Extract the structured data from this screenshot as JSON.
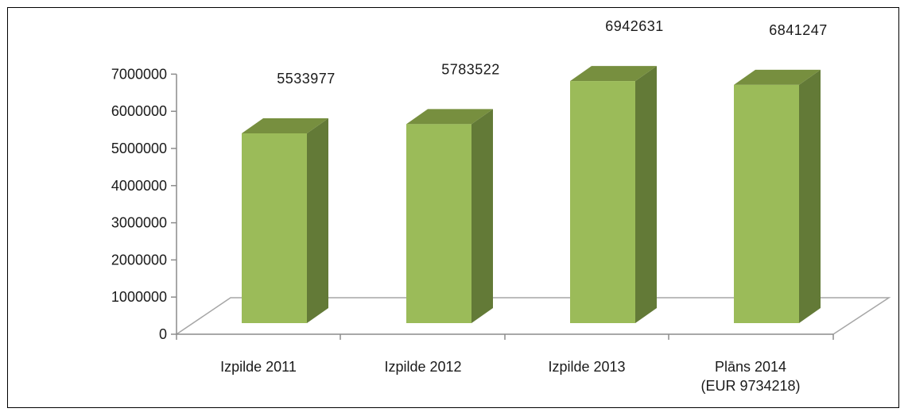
{
  "colors": {
    "bar_front": "#9bbb59",
    "bar_side": "#637a37",
    "bar_top": "#778f3f",
    "floor_line": "#a6a6a6",
    "axis_line": "#8c8c8c"
  },
  "chart_data": {
    "type": "bar",
    "style": "3d-column",
    "title": "",
    "xlabel": "",
    "ylabel": "",
    "ylim": [
      0,
      7000000
    ],
    "yticks": [
      "0",
      "1000000",
      "2000000",
      "3000000",
      "4000000",
      "5000000",
      "6000000",
      "7000000"
    ],
    "categories": [
      [
        "Izpilde 2011"
      ],
      [
        "Izpilde 2012"
      ],
      [
        "Izpilde 2013"
      ],
      [
        "Plāns 2014",
        "(EUR 9734218)"
      ]
    ],
    "values": [
      5533977,
      5783522,
      6942631,
      6841247
    ],
    "data_labels": [
      "5533977",
      "5783522",
      "6942631",
      "6841247"
    ],
    "grid": false,
    "legend": "none"
  }
}
